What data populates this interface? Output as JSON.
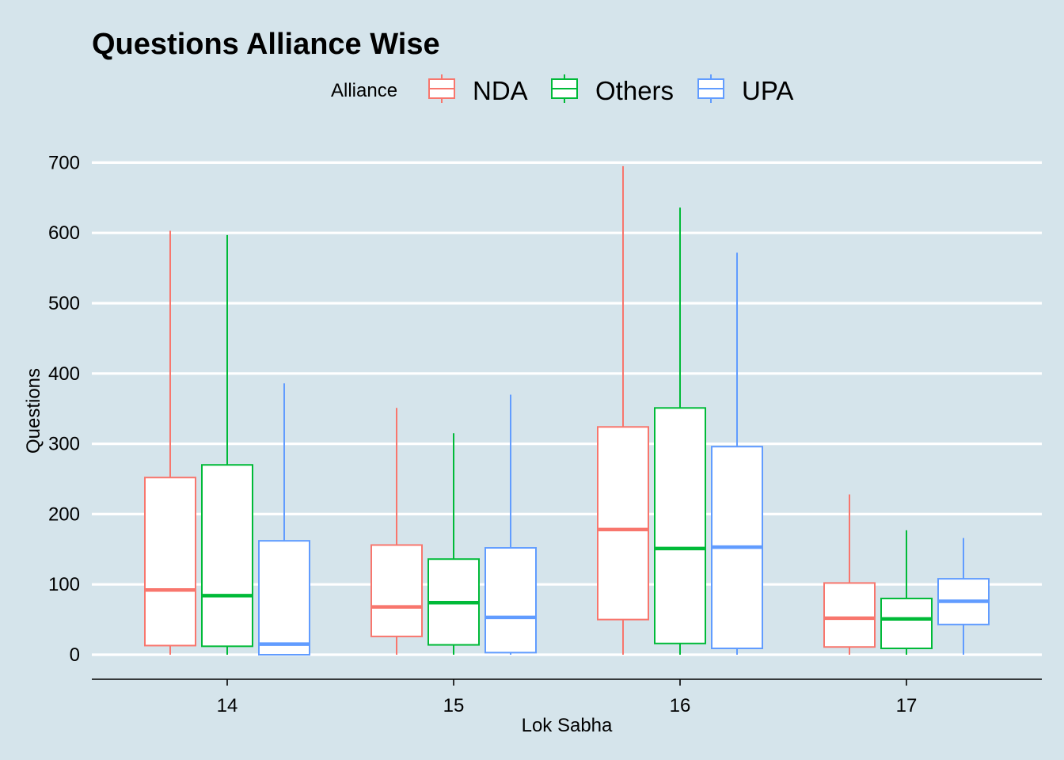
{
  "chart_data": {
    "type": "boxplot",
    "title": "Questions Alliance Wise",
    "xlabel": "Lok Sabha",
    "ylabel": "Questions",
    "ylim": [
      0,
      700
    ],
    "yticks": [
      0,
      100,
      200,
      300,
      400,
      500,
      600,
      700
    ],
    "grid": "horizontal",
    "legend": {
      "title": "Alliance",
      "position": "top"
    },
    "categories": [
      "14",
      "15",
      "16",
      "17"
    ],
    "series": [
      {
        "name": "NDA",
        "color": "#f8766d",
        "boxes": [
          {
            "min": 0,
            "q1": 13,
            "median": 92,
            "q3": 252,
            "max": 603
          },
          {
            "min": 0,
            "q1": 26,
            "median": 68,
            "q3": 156,
            "max": 351
          },
          {
            "min": 0,
            "q1": 50,
            "median": 178,
            "q3": 324,
            "max": 695
          },
          {
            "min": 0,
            "q1": 11,
            "median": 52,
            "q3": 102,
            "max": 228
          }
        ]
      },
      {
        "name": "Others",
        "color": "#00ba38",
        "boxes": [
          {
            "min": 0,
            "q1": 12,
            "median": 84,
            "q3": 270,
            "max": 597
          },
          {
            "min": 0,
            "q1": 14,
            "median": 74,
            "q3": 136,
            "max": 315
          },
          {
            "min": 0,
            "q1": 16,
            "median": 151,
            "q3": 351,
            "max": 636
          },
          {
            "min": 0,
            "q1": 9,
            "median": 51,
            "q3": 80,
            "max": 177
          }
        ]
      },
      {
        "name": "UPA",
        "color": "#619cff",
        "boxes": [
          {
            "min": 0,
            "q1": 0,
            "median": 15,
            "q3": 162,
            "max": 386
          },
          {
            "min": 0,
            "q1": 3,
            "median": 53,
            "q3": 152,
            "max": 370
          },
          {
            "min": 0,
            "q1": 9,
            "median": 153,
            "q3": 296,
            "max": 572
          },
          {
            "min": 0,
            "q1": 43,
            "median": 76,
            "q3": 108,
            "max": 166
          }
        ]
      }
    ]
  }
}
